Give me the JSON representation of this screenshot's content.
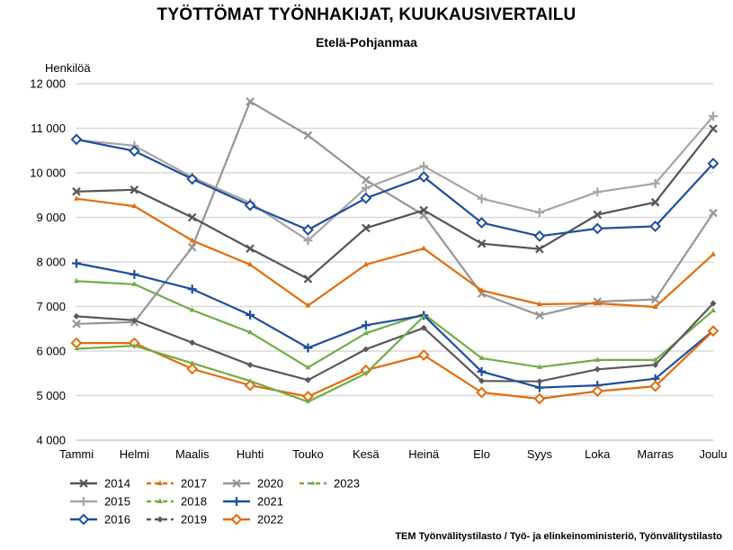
{
  "chart_data": {
    "type": "line",
    "title": "TYÖTTÖMAT TYÖNHAKIJAT, KUUKAUSIVERTAILU",
    "subtitle": "Etelä-Pohjanmaa",
    "ylabel": "Henkilöä",
    "ylim": [
      4000,
      12000
    ],
    "y_ticks": [
      4000,
      5000,
      6000,
      7000,
      8000,
      9000,
      10000,
      11000,
      12000
    ],
    "y_tick_labels": [
      "4 000",
      "5 000",
      "6 000",
      "7 000",
      "8 000",
      "9 000",
      "10 000",
      "11 000",
      "12 000"
    ],
    "grid": true,
    "legend_position": "bottom-left",
    "categories": [
      "Tammi",
      "Helmi",
      "Maalis",
      "Huhti",
      "Touko",
      "Kesä",
      "Heinä",
      "Elo",
      "Syys",
      "Loka",
      "Marras",
      "Joulu"
    ],
    "series": [
      {
        "name": "2014",
        "color": "#555555",
        "dash": "solid",
        "marker": "x",
        "values": [
          9580,
          9620,
          9000,
          8300,
          7620,
          8760,
          9160,
          8410,
          8290,
          9060,
          9340,
          10990
        ]
      },
      {
        "name": "2015",
        "color": "#a6a6a6",
        "dash": "solid",
        "marker": "plus",
        "values": [
          10740,
          10610,
          9900,
          9330,
          8480,
          9660,
          10150,
          9420,
          9110,
          9570,
          9760,
          11270
        ]
      },
      {
        "name": "2016",
        "color": "#1f4e9b",
        "dash": "solid",
        "marker": "diamond",
        "values": [
          10750,
          10490,
          9860,
          9270,
          8720,
          9430,
          9910,
          8880,
          8580,
          8750,
          8800,
          10210
        ]
      },
      {
        "name": "2017",
        "color": "#e36c0a",
        "dash": "solid",
        "marker": "triangle",
        "values": [
          9420,
          9250,
          8480,
          7940,
          7020,
          7940,
          8300,
          7360,
          7050,
          7070,
          6990,
          8170
        ]
      },
      {
        "name": "2018",
        "color": "#70ad47",
        "dash": "solid",
        "marker": "triangle",
        "values": [
          7570,
          7500,
          6920,
          6420,
          5630,
          6400,
          6830,
          5840,
          5640,
          5800,
          5800,
          6910
        ]
      },
      {
        "name": "2019",
        "color": "#595959",
        "dash": "solid",
        "marker": "diamond-small",
        "values": [
          6780,
          6690,
          6190,
          5690,
          5350,
          6040,
          6520,
          5330,
          5320,
          5590,
          5690,
          7070
        ]
      },
      {
        "name": "2020",
        "color": "#969696",
        "dash": "solid",
        "marker": "x",
        "values": [
          6610,
          6650,
          8330,
          11600,
          10840,
          9840,
          9050,
          7290,
          6800,
          7110,
          7160,
          9100
        ]
      },
      {
        "name": "2021",
        "color": "#1f4e9b",
        "dash": "solid",
        "marker": "plus",
        "values": [
          7970,
          7720,
          7390,
          6810,
          6070,
          6580,
          6800,
          5540,
          5180,
          5230,
          5380,
          6460
        ]
      },
      {
        "name": "2022",
        "color": "#e36c0a",
        "dash": "solid",
        "marker": "diamond",
        "values": [
          6180,
          6180,
          5600,
          5230,
          4980,
          5570,
          5910,
          5070,
          4930,
          5100,
          5210,
          6450
        ]
      },
      {
        "name": "2023",
        "color": "#70ad47",
        "dash": "solid",
        "marker": "triangle-small",
        "values": [
          6050,
          6120,
          5730,
          5330,
          4860,
          5500,
          6780,
          null,
          null,
          null,
          null,
          null
        ]
      }
    ]
  },
  "source": "TEM Työnvälitystilasto / Työ- ja elinkeinoministeriö, Työnvälitystilasto"
}
